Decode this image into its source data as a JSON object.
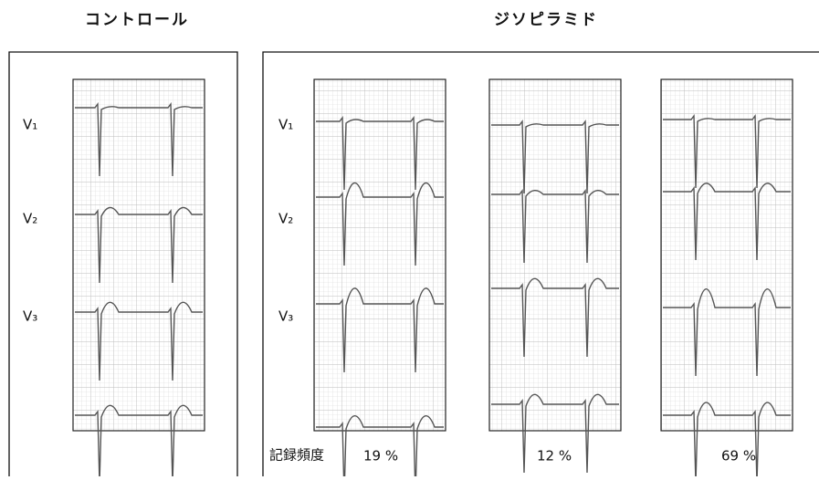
{
  "titles": {
    "control": "コントロール",
    "drug": "ジソピラミド"
  },
  "control": {
    "leads": [
      "V₁",
      "V₂",
      "V₃"
    ]
  },
  "drug": {
    "leads": [
      "V₁",
      "V₂",
      "V₃"
    ]
  },
  "frequency": {
    "label": "記録頻度",
    "values": [
      "19 %",
      "12 %",
      "69 %"
    ]
  }
}
